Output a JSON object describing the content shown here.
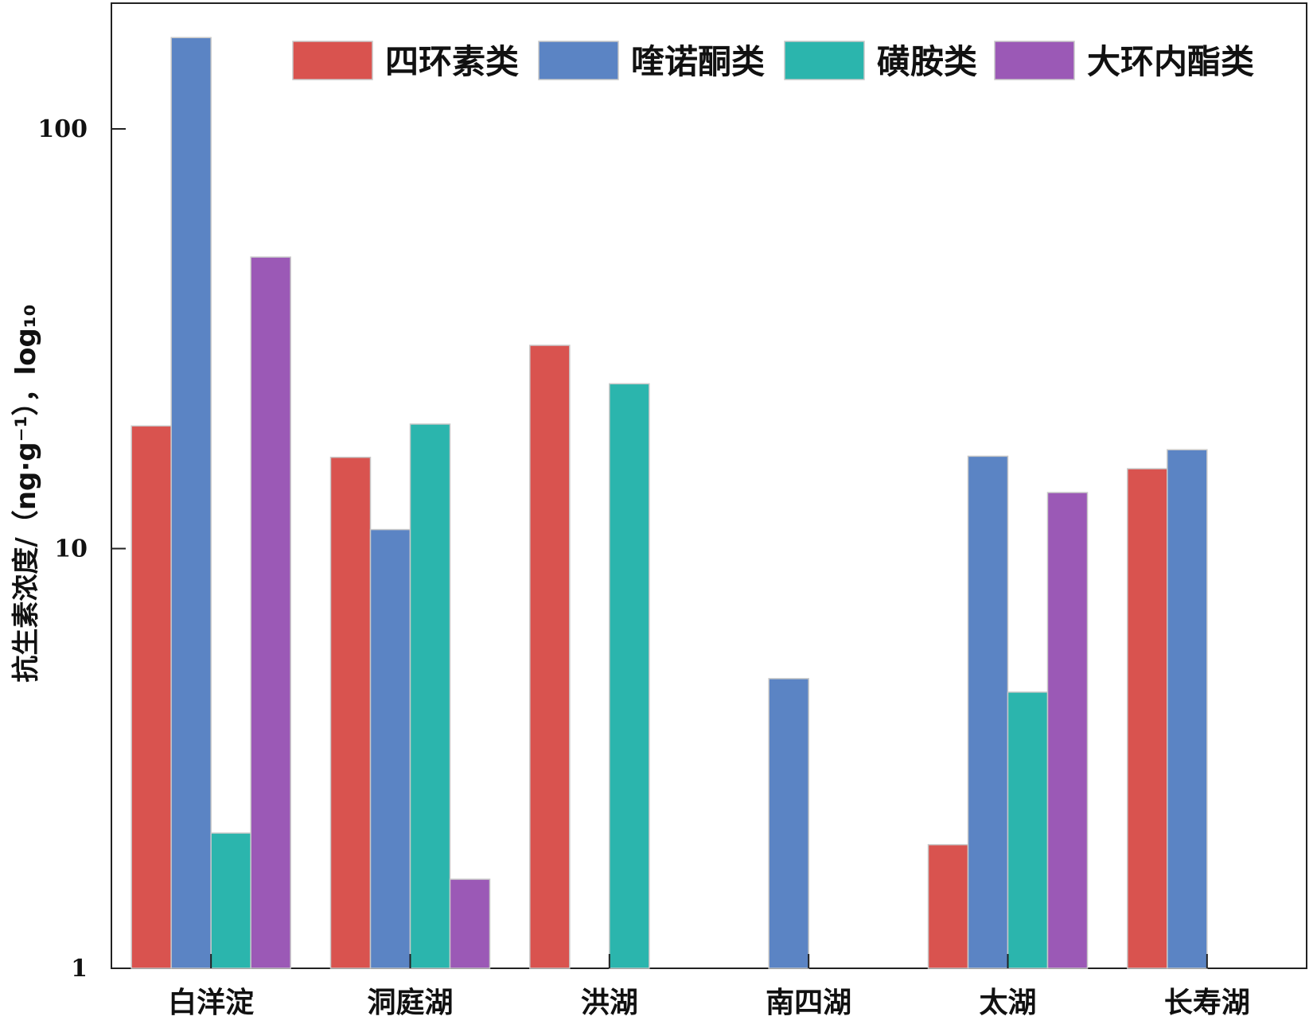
{
  "chart_data": {
    "type": "bar",
    "title": "",
    "xlabel": "",
    "ylabel": "抗生素浓度/（ng·g⁻¹），log₁₀",
    "yscale": "log",
    "ylim": [
      1,
      180
    ],
    "yticks": [
      1,
      10,
      100
    ],
    "ytick_labels": [
      "1",
      "10",
      "100"
    ],
    "legend_position": "top-right",
    "grid": false,
    "categories": [
      "白洋淀",
      "洞庭湖",
      "洪湖",
      "南四湖",
      "太湖",
      "长寿湖"
    ],
    "series": [
      {
        "name": "四环素类",
        "color": "#d9534f",
        "values": [
          19.6,
          16.5,
          30.5,
          null,
          1.97,
          15.5
        ]
      },
      {
        "name": "喹诺酮类",
        "color": "#5b84c4",
        "values": [
          165,
          11.1,
          null,
          4.9,
          16.6,
          17.2
        ]
      },
      {
        "name": "磺胺类",
        "color": "#2bb5ad",
        "values": [
          2.1,
          19.8,
          24.7,
          null,
          4.55,
          null
        ]
      },
      {
        "name": "大环内酯类",
        "color": "#9b59b6",
        "values": [
          49.5,
          1.63,
          null,
          null,
          13.6,
          null
        ]
      }
    ]
  }
}
